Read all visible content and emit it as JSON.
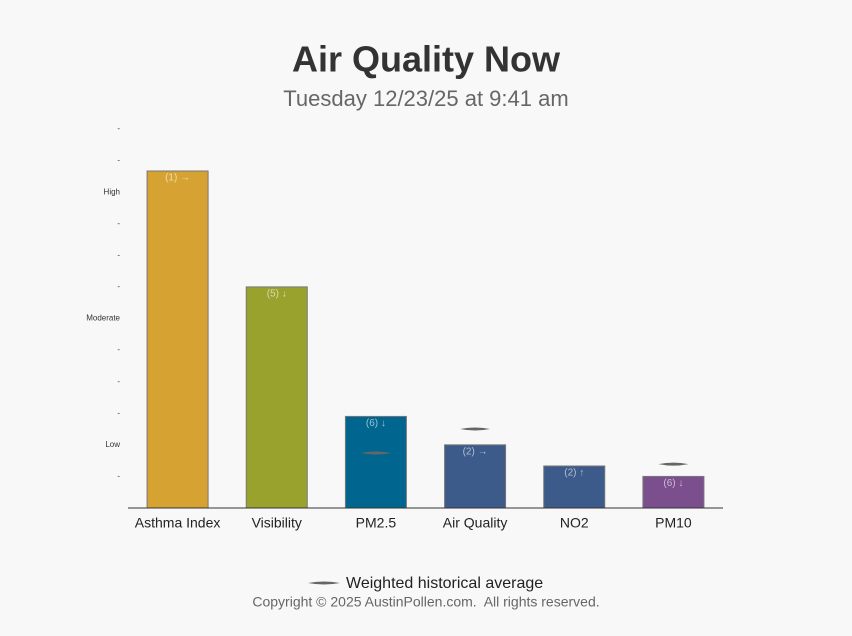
{
  "chart_data": {
    "type": "bar",
    "title": "Air Quality Now",
    "subtitle": "Tuesday 12/23/25 at 9:41 am",
    "categories": [
      "Asthma Index",
      "Visibility",
      "PM2.5",
      "Air Quality",
      "NO2",
      "PM10"
    ],
    "values": [
      10.67,
      7.0,
      2.9,
      2.0,
      1.33,
      1.0
    ],
    "bar_labels": [
      "(1) →",
      "(5) ↓",
      "(6) ↓",
      "(2) →",
      "(2) ↑",
      "(6) ↓"
    ],
    "colors": [
      "#d6a232",
      "#9aa22e",
      "#006690",
      "#3c5a8a",
      "#3c5a8a",
      "#7b4f8e"
    ],
    "average": [
      null,
      null,
      1.74,
      2.5,
      null,
      1.39
    ],
    "legend_label": "Weighted historical average",
    "ylim": [
      0,
      12
    ],
    "yticks": [
      {
        "value": 1,
        "label": "-"
      },
      {
        "value": 2,
        "label": "Low"
      },
      {
        "value": 3,
        "label": "-"
      },
      {
        "value": 4,
        "label": "-"
      },
      {
        "value": 5,
        "label": "-"
      },
      {
        "value": 6,
        "label": "Moderate"
      },
      {
        "value": 7,
        "label": "-"
      },
      {
        "value": 8,
        "label": "-"
      },
      {
        "value": 9,
        "label": "-"
      },
      {
        "value": 10,
        "label": "High"
      },
      {
        "value": 11,
        "label": "-"
      },
      {
        "value": 12,
        "label": "-"
      }
    ],
    "grid": false
  },
  "footer": "Copyright © 2025 AustinPollen.com.  All rights reserved."
}
